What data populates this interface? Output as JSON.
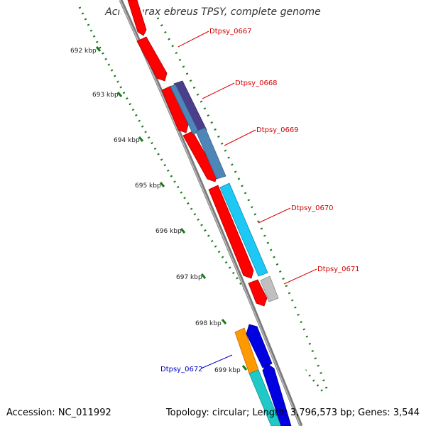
{
  "title": "Acidovorax ebreus TPSY, complete genome",
  "footer": {
    "accession": "Accession: NC_011992",
    "summary": "Topology: circular; Length: 3,796,573 bp; Genes: 3,544"
  },
  "scale_labels": [
    "692 kbp",
    "693 kbp",
    "694 kbp",
    "695 kbp",
    "696 kbp",
    "697 kbp",
    "698 kbp",
    "699 kbp"
  ],
  "gene_labels": [
    {
      "text": "Dtpsy_0667",
      "color": "#d40000"
    },
    {
      "text": "Dtpsy_0668",
      "color": "#d40000"
    },
    {
      "text": "Dtpsy_0669",
      "color": "#d40000"
    },
    {
      "text": "Dtpsy_0670",
      "color": "#d40000"
    },
    {
      "text": "Dtpsy_0671",
      "color": "#d40000"
    },
    {
      "text": "Dtpsy_0672",
      "color": "#0000c0"
    }
  ],
  "colors": {
    "backbone": "#7a7a7a",
    "tick_green": "#1a7a1a",
    "cds_red": "#ff0000",
    "blue_steel": "#4f86b8",
    "purple": "#4b3f8c",
    "cyan": "#1ec8f5",
    "grey": "#c0c0c0",
    "orange": "#ff9900",
    "navy": "#0000e0",
    "teal": "#20c8c8"
  }
}
